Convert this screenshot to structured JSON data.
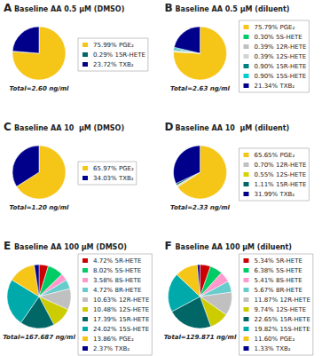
{
  "chart_data": [
    {
      "type": "pie",
      "title": "Baseline AA 0.5 μM (DMSO)",
      "annotations": [
        "A",
        "Total=2.60 ng/ml"
      ],
      "categories": [
        "75.99% PGE₂",
        "0.29% 15R-HETE",
        "23.72% TXB₂"
      ],
      "values": [
        75.99,
        0.29,
        23.72
      ],
      "colors": [
        "#F5C518",
        "#006666",
        "#00008B"
      ],
      "legend": "right"
    },
    {
      "type": "pie",
      "title": "Baseline AA 0.5 μM (diluent)",
      "annotations": [
        "B",
        "Total=2.63 ng/ml"
      ],
      "categories": [
        "75.79% PGE₂",
        "0.30% 5S-HETE",
        "0.39% 12R-HETE",
        "0.39% 12S-HETE",
        "0.90% 15R-HETE",
        "0.90% 15S-HETE",
        "21.34% TXB₂"
      ],
      "values": [
        75.79,
        0.3,
        0.39,
        0.39,
        0.9,
        0.9,
        21.34
      ],
      "colors": [
        "#F5C518",
        "#00CC66",
        "#C0C0C0",
        "#D3D3D3",
        "#008080",
        "#00CED1",
        "#00008B"
      ],
      "legend": "right"
    },
    {
      "type": "pie",
      "title": "Baseline AA 10  μM (DMSO)",
      "annotations": [
        "C",
        "Total=1.20 ng/ml"
      ],
      "categories": [
        "65.97% PGE₂",
        "34.03% TXB₂"
      ],
      "values": [
        65.97,
        34.03
      ],
      "colors": [
        "#F5C518",
        "#00008B"
      ],
      "legend": "right"
    },
    {
      "type": "pie",
      "title": "Baseline AA 10  μM (diluent)",
      "annotations": [
        "D",
        "Total=2.33 ng/ml"
      ],
      "categories": [
        "65.65% PGE₂",
        "0.70% 12R-HETE",
        "0.55% 12S-HETE",
        "1.11% 15R-HETE",
        "31.99% TXB₂"
      ],
      "values": [
        65.65,
        0.7,
        0.55,
        1.11,
        31.99
      ],
      "colors": [
        "#F5C518",
        "#C0C0C0",
        "#D4D400",
        "#006666",
        "#00008B"
      ],
      "legend": "right"
    },
    {
      "type": "pie",
      "title": "Baseline AA 100 μM (DMSO)",
      "annotations": [
        "E",
        "Total=167.687 ng/ml"
      ],
      "categories": [
        "4.72% 5R-HETE",
        "8.02% 5S-HETE",
        "3.58% 8S-HETE",
        "4.72% 8R-HETE",
        "10.63% 12R-HETE",
        "10.48% 12S-HETE",
        "17.39% 15R-HETE",
        "24.02% 15S-HETE",
        "13.86% PGE₂",
        "2.37% TXB₂"
      ],
      "values": [
        4.72,
        8.02,
        3.58,
        4.72,
        10.63,
        10.48,
        17.39,
        24.02,
        13.86,
        2.37
      ],
      "colors": [
        "#CC0000",
        "#00CC66",
        "#FF99CC",
        "#66CCCC",
        "#C0C0C0",
        "#CCCC00",
        "#006666",
        "#00AAAA",
        "#F5C518",
        "#00008B"
      ],
      "legend": "right"
    },
    {
      "type": "pie",
      "title": "Baseline AA 100 μM (diluent)",
      "annotations": [
        "F",
        "Total=129.871 ng/ml"
      ],
      "categories": [
        "5.34% 5R-HETE",
        "6.38% 5S-HETE",
        "5.41% 8S-HETE",
        "5.67% 8R-HETE",
        "11.87% 12R-HETE",
        "9.74% 12S-HETE",
        "22.65% 15R-HETE",
        "19.82% 15S-HETE",
        "11.60% PGE₂",
        "1.33% TXB₂"
      ],
      "values": [
        5.34,
        6.38,
        5.41,
        5.67,
        11.87,
        9.74,
        22.65,
        19.82,
        11.6,
        1.33
      ],
      "colors": [
        "#CC0000",
        "#00CC66",
        "#FF99CC",
        "#66CCCC",
        "#C0C0C0",
        "#CCCC00",
        "#006666",
        "#00AAAA",
        "#F5C518",
        "#00008B"
      ],
      "legend": "right"
    }
  ]
}
